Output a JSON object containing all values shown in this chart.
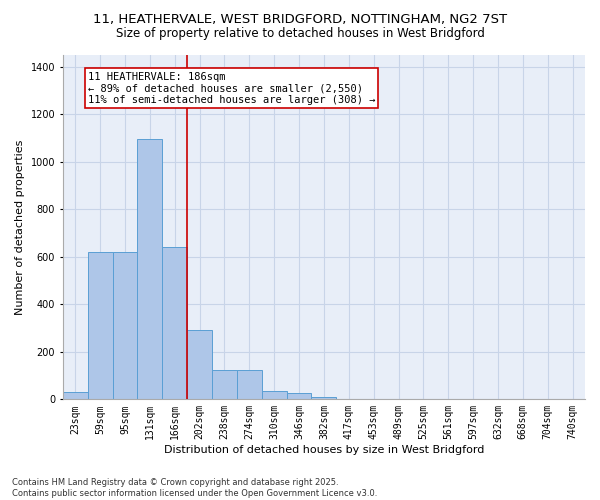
{
  "title_line1": "11, HEATHERVALE, WEST BRIDGFORD, NOTTINGHAM, NG2 7ST",
  "title_line2": "Size of property relative to detached houses in West Bridgford",
  "xlabel": "Distribution of detached houses by size in West Bridgford",
  "ylabel": "Number of detached properties",
  "categories": [
    "23sqm",
    "59sqm",
    "95sqm",
    "131sqm",
    "166sqm",
    "202sqm",
    "238sqm",
    "274sqm",
    "310sqm",
    "346sqm",
    "382sqm",
    "417sqm",
    "453sqm",
    "489sqm",
    "525sqm",
    "561sqm",
    "597sqm",
    "632sqm",
    "668sqm",
    "704sqm",
    "740sqm"
  ],
  "values": [
    30,
    620,
    620,
    1095,
    640,
    290,
    125,
    125,
    35,
    25,
    10,
    0,
    0,
    0,
    0,
    0,
    0,
    0,
    0,
    0,
    0
  ],
  "bar_color": "#aec6e8",
  "bar_edge_color": "#5a9fd4",
  "vline_color": "#cc0000",
  "annotation_text": "11 HEATHERVALE: 186sqm\n← 89% of detached houses are smaller (2,550)\n11% of semi-detached houses are larger (308) →",
  "annotation_box_color": "#cc0000",
  "annotation_fill": "#ffffff",
  "ylim": [
    0,
    1450
  ],
  "yticks": [
    0,
    200,
    400,
    600,
    800,
    1000,
    1200,
    1400
  ],
  "grid_color": "#c8d4e8",
  "bg_color": "#e8eef8",
  "footer_line1": "Contains HM Land Registry data © Crown copyright and database right 2025.",
  "footer_line2": "Contains public sector information licensed under the Open Government Licence v3.0.",
  "title_fontsize": 9.5,
  "subtitle_fontsize": 8.5,
  "axis_label_fontsize": 8,
  "tick_fontsize": 7,
  "annotation_fontsize": 7.5,
  "footer_fontsize": 6,
  "vline_pos": 4.5
}
